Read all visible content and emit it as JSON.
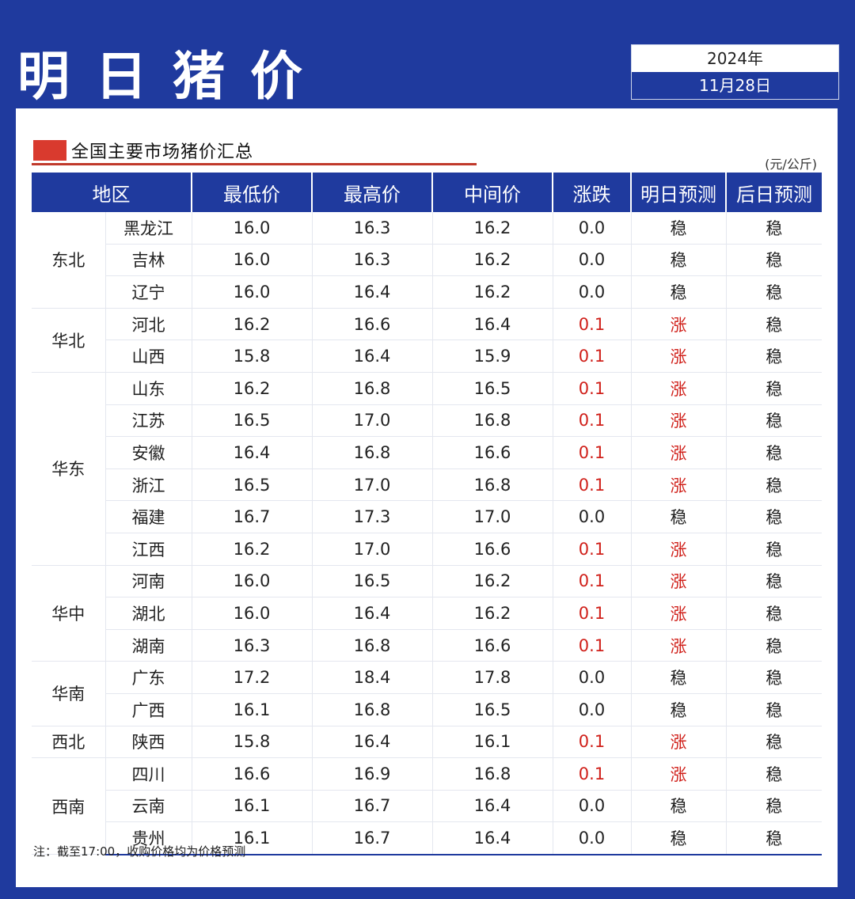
{
  "header": {
    "title": "明日猪价",
    "year": "2024年",
    "date": "11月28日"
  },
  "section": {
    "title": "全国主要市场猪价汇总",
    "unit": "(元/公斤)"
  },
  "table": {
    "columns": [
      "地区",
      "最低价",
      "最高价",
      "中间价",
      "涨跌",
      "明日预测",
      "后日预测"
    ],
    "groups": [
      {
        "region": "东北",
        "rows": [
          {
            "province": "黑龙江",
            "low": "16.0",
            "high": "16.3",
            "mid": "16.2",
            "change": "0.0",
            "tomorrow": "稳",
            "dayafter": "稳",
            "up": false
          },
          {
            "province": "吉林",
            "low": "16.0",
            "high": "16.3",
            "mid": "16.2",
            "change": "0.0",
            "tomorrow": "稳",
            "dayafter": "稳",
            "up": false
          },
          {
            "province": "辽宁",
            "low": "16.0",
            "high": "16.4",
            "mid": "16.2",
            "change": "0.0",
            "tomorrow": "稳",
            "dayafter": "稳",
            "up": false
          }
        ]
      },
      {
        "region": "华北",
        "rows": [
          {
            "province": "河北",
            "low": "16.2",
            "high": "16.6",
            "mid": "16.4",
            "change": "0.1",
            "tomorrow": "涨",
            "dayafter": "稳",
            "up": true
          },
          {
            "province": "山西",
            "low": "15.8",
            "high": "16.4",
            "mid": "15.9",
            "change": "0.1",
            "tomorrow": "涨",
            "dayafter": "稳",
            "up": true
          }
        ]
      },
      {
        "region": "华东",
        "rows": [
          {
            "province": "山东",
            "low": "16.2",
            "high": "16.8",
            "mid": "16.5",
            "change": "0.1",
            "tomorrow": "涨",
            "dayafter": "稳",
            "up": true
          },
          {
            "province": "江苏",
            "low": "16.5",
            "high": "17.0",
            "mid": "16.8",
            "change": "0.1",
            "tomorrow": "涨",
            "dayafter": "稳",
            "up": true
          },
          {
            "province": "安徽",
            "low": "16.4",
            "high": "16.8",
            "mid": "16.6",
            "change": "0.1",
            "tomorrow": "涨",
            "dayafter": "稳",
            "up": true
          },
          {
            "province": "浙江",
            "low": "16.5",
            "high": "17.0",
            "mid": "16.8",
            "change": "0.1",
            "tomorrow": "涨",
            "dayafter": "稳",
            "up": true
          },
          {
            "province": "福建",
            "low": "16.7",
            "high": "17.3",
            "mid": "17.0",
            "change": "0.0",
            "tomorrow": "稳",
            "dayafter": "稳",
            "up": false
          },
          {
            "province": "江西",
            "low": "16.2",
            "high": "17.0",
            "mid": "16.6",
            "change": "0.1",
            "tomorrow": "涨",
            "dayafter": "稳",
            "up": true
          }
        ]
      },
      {
        "region": "华中",
        "rows": [
          {
            "province": "河南",
            "low": "16.0",
            "high": "16.5",
            "mid": "16.2",
            "change": "0.1",
            "tomorrow": "涨",
            "dayafter": "稳",
            "up": true
          },
          {
            "province": "湖北",
            "low": "16.0",
            "high": "16.4",
            "mid": "16.2",
            "change": "0.1",
            "tomorrow": "涨",
            "dayafter": "稳",
            "up": true
          },
          {
            "province": "湖南",
            "low": "16.3",
            "high": "16.8",
            "mid": "16.6",
            "change": "0.1",
            "tomorrow": "涨",
            "dayafter": "稳",
            "up": true
          }
        ]
      },
      {
        "region": "华南",
        "rows": [
          {
            "province": "广东",
            "low": "17.2",
            "high": "18.4",
            "mid": "17.8",
            "change": "0.0",
            "tomorrow": "稳",
            "dayafter": "稳",
            "up": false
          },
          {
            "province": "广西",
            "low": "16.1",
            "high": "16.8",
            "mid": "16.5",
            "change": "0.0",
            "tomorrow": "稳",
            "dayafter": "稳",
            "up": false
          }
        ]
      },
      {
        "region": "西北",
        "rows": [
          {
            "province": "陕西",
            "low": "15.8",
            "high": "16.4",
            "mid": "16.1",
            "change": "0.1",
            "tomorrow": "涨",
            "dayafter": "稳",
            "up": true
          }
        ]
      },
      {
        "region": "西南",
        "rows": [
          {
            "province": "四川",
            "low": "16.6",
            "high": "16.9",
            "mid": "16.8",
            "change": "0.1",
            "tomorrow": "涨",
            "dayafter": "稳",
            "up": true
          },
          {
            "province": "云南",
            "low": "16.1",
            "high": "16.7",
            "mid": "16.4",
            "change": "0.0",
            "tomorrow": "稳",
            "dayafter": "稳",
            "up": false
          },
          {
            "province": "贵州",
            "low": "16.1",
            "high": "16.7",
            "mid": "16.4",
            "change": "0.0",
            "tomorrow": "稳",
            "dayafter": "稳",
            "up": false
          }
        ]
      }
    ]
  },
  "note": "注：截至17:00，收购价格均为价格预测",
  "colors": {
    "primary": "#1f3a9e",
    "up": "#d0201a",
    "accent": "#d93a2e"
  }
}
